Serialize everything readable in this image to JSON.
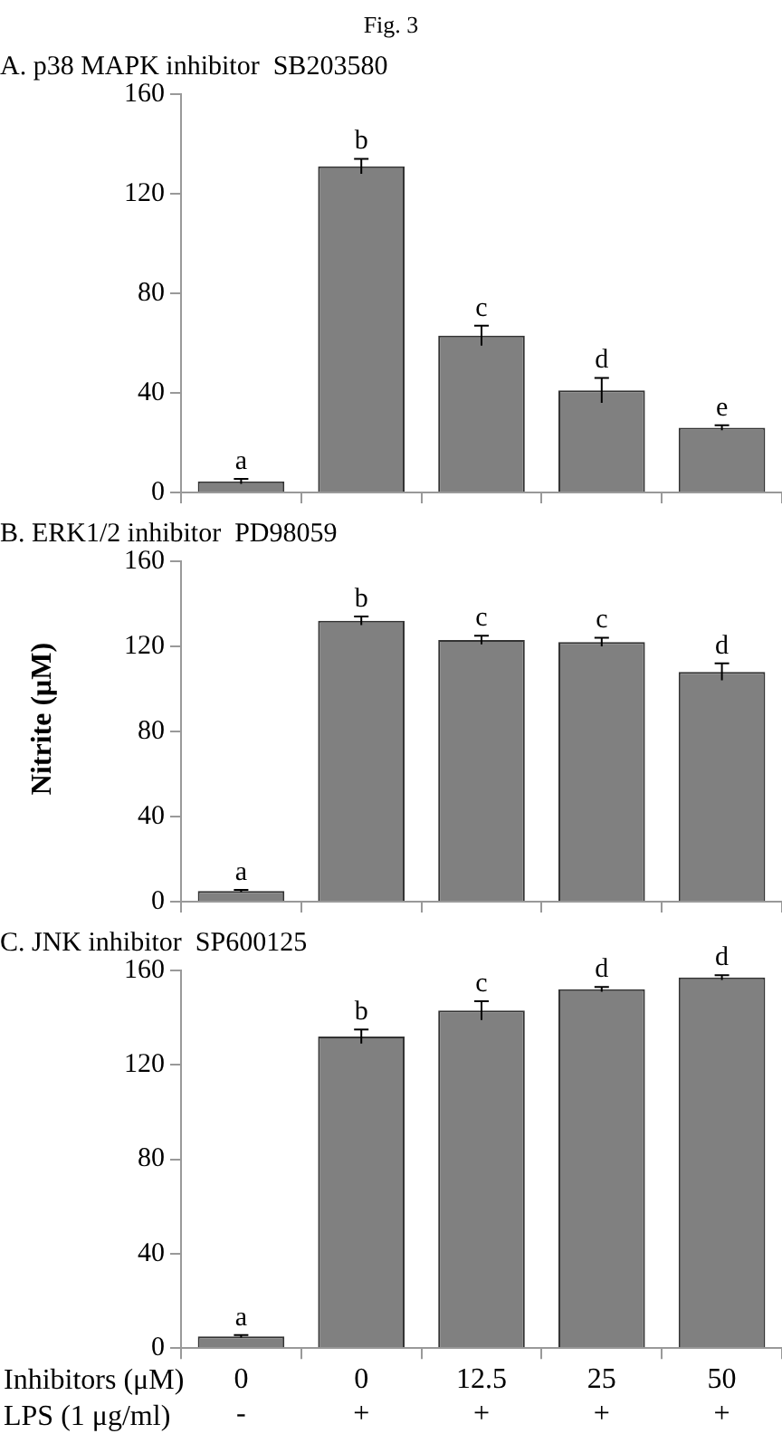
{
  "chart_data": [
    {
      "type": "bar",
      "title": "A. p38 MAPK inhibitor  SB203580",
      "annotations": [
        "Fig. 3"
      ],
      "categories": [
        null,
        null,
        null,
        null,
        null
      ],
      "values": [
        4.5,
        131,
        63,
        41,
        26
      ],
      "errors": [
        1,
        3,
        4,
        5,
        1
      ],
      "value_labels": [
        "a",
        "b",
        "c",
        "d",
        "e"
      ],
      "color": "#808080",
      "ylim": [
        0,
        160
      ],
      "yticks": [
        0,
        40,
        80,
        120,
        160
      ],
      "tick_labels": "y"
    },
    {
      "type": "bar",
      "title": "B. ERK1/2 inhibitor  PD98059",
      "ylabel": "Nitrite (μM)",
      "categories": [
        null,
        null,
        null,
        null,
        null
      ],
      "values": [
        5,
        132,
        123,
        122,
        108
      ],
      "errors": [
        0.5,
        2,
        2,
        2,
        4
      ],
      "value_labels": [
        "a",
        "b",
        "c",
        "c",
        "d"
      ],
      "color": "#808080",
      "ylim": [
        0,
        160
      ],
      "yticks": [
        0,
        40,
        80,
        120,
        160
      ],
      "tick_labels": "y"
    },
    {
      "type": "bar",
      "title": "C. JNK inhibitor  SP600125",
      "annotations": [
        "Inhibitors (μM)",
        "LPS (1 μg/ml)"
      ],
      "categories": [
        "0\n-",
        "0\n+",
        "12.5\n+",
        "25\n+",
        "50\n+"
      ],
      "values": [
        5,
        132,
        143,
        152,
        157
      ],
      "errors": [
        0.5,
        3,
        4,
        1,
        1
      ],
      "value_labels": [
        "a",
        "b",
        "c",
        "d",
        "d"
      ],
      "color": "#808080",
      "ylim": [
        0,
        160
      ],
      "yticks": [
        0,
        40,
        80,
        120,
        160
      ]
    }
  ]
}
